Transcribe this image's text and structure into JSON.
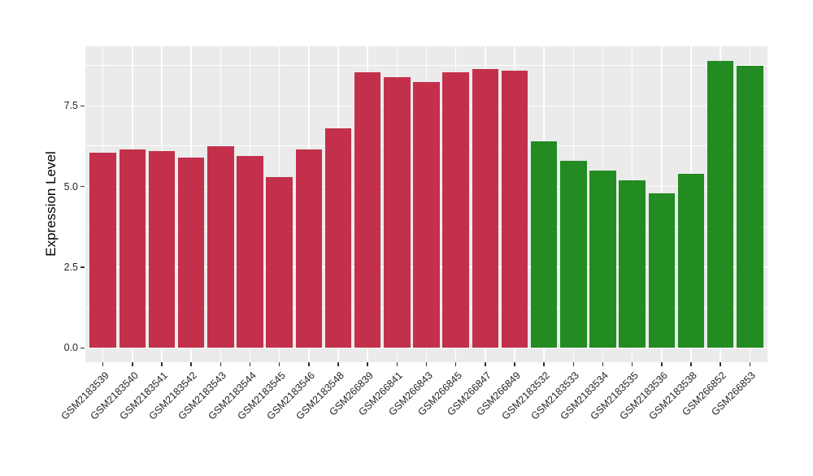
{
  "chart_data": {
    "type": "bar",
    "ylabel": "Expression Level",
    "xlabel": "",
    "categories": [
      "GSM2183539",
      "GSM2183540",
      "GSM2183541",
      "GSM2183542",
      "GSM2183543",
      "GSM2183544",
      "GSM2183545",
      "GSM2183546",
      "GSM2183548",
      "GSM266839",
      "GSM266841",
      "GSM266843",
      "GSM266845",
      "GSM266847",
      "GSM266849",
      "GSM2183532",
      "GSM2183533",
      "GSM2183534",
      "GSM2183535",
      "GSM2183536",
      "GSM2183538",
      "GSM266852",
      "GSM266853"
    ],
    "values": [
      6.05,
      6.15,
      6.1,
      5.9,
      6.25,
      5.95,
      5.3,
      6.15,
      6.8,
      8.55,
      8.4,
      8.25,
      8.55,
      8.65,
      8.6,
      6.4,
      5.8,
      5.5,
      5.2,
      4.8,
      5.4,
      8.9,
      8.75
    ],
    "bar_colors": [
      "#C3304C",
      "#C3304C",
      "#C3304C",
      "#C3304C",
      "#C3304C",
      "#C3304C",
      "#C3304C",
      "#C3304C",
      "#C3304C",
      "#C3304C",
      "#C3304C",
      "#C3304C",
      "#C3304C",
      "#C3304C",
      "#C3304C",
      "#228B22",
      "#228B22",
      "#228B22",
      "#228B22",
      "#228B22",
      "#228B22",
      "#228B22",
      "#228B22"
    ],
    "palette": {
      "red_group": "#C3304C",
      "green_group": "#228B22"
    },
    "yticks": {
      "major": [
        0,
        2.5,
        5,
        7.5
      ],
      "major_labels": [
        "0.0",
        "2.5",
        "5.0",
        "7.5"
      ],
      "minor": [
        1.25,
        3.75,
        6.25,
        8.75
      ]
    },
    "ylim": [
      -0.445,
      9.345
    ],
    "bar_width_fraction": 0.9,
    "panel_bg": "#EBEBEB",
    "grid_color": "#FFFFFF",
    "legend": "none",
    "x_tick_angle": 45
  }
}
